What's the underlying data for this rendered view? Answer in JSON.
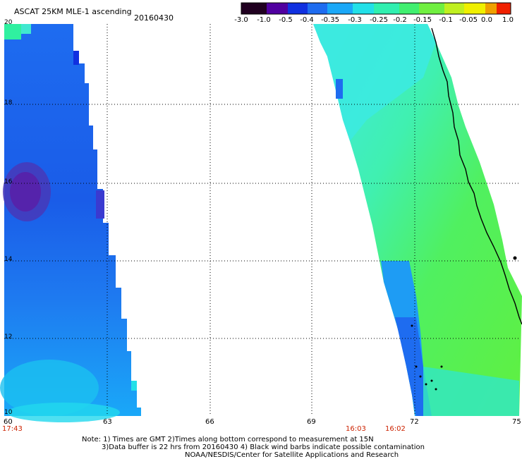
{
  "header": {
    "title": "ASCAT 25KM MLE-1 ascending",
    "date": "20160430"
  },
  "colorbar": {
    "labels": [
      "-3.0",
      "-1.0",
      "-0.5",
      "-0.4",
      "-0.35",
      "-0.3",
      "-0.25",
      "-0.2",
      "-0.15",
      "-0.1",
      "-0.05",
      "0.0",
      "1.0"
    ],
    "colors": [
      "#200020",
      "#5000a0",
      "#1030e0",
      "#1e6cf0",
      "#1aa8f8",
      "#22e0e8",
      "#30f0b0",
      "#40f070",
      "#70f040",
      "#c0f020",
      "#f0f000",
      "#f0a000",
      "#f02000"
    ]
  },
  "axes": {
    "lat_labels": [
      "20",
      "18",
      "16",
      "14",
      "12",
      "10"
    ],
    "lon_labels": [
      "60",
      "63",
      "66",
      "69",
      "72",
      "75"
    ]
  },
  "times": {
    "left": "17:43",
    "mid1": "16:03",
    "mid2": "16:02"
  },
  "notes": {
    "line1": "Note: 1) Times are GMT 2)Times along bottom correspond to measurement at 15N",
    "line2": "3)Data buffer is 22 hrs from 20160430 4) Black wind barbs indicate possible contamination",
    "line3": "NOAA/NESDIS/Center for Satellite Applications and Research"
  }
}
